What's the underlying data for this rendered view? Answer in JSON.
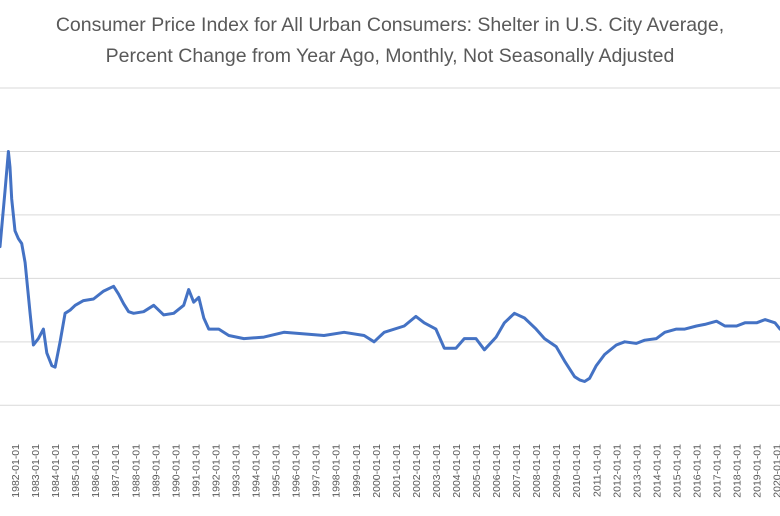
{
  "chart_data": {
    "type": "line",
    "title": "Consumer Price Index for All Urban Consumers: Shelter in U.S. City Average,",
    "subtitle": "Percent Change from Year Ago, Monthly, Not Seasonally Adjusted",
    "xlabel": "",
    "ylabel": "",
    "grid": "horizontal",
    "legend": "none",
    "series_color": "#4472c4",
    "x_tick_labels": [
      "1982-01-01",
      "1983-01-01",
      "1984-01-01",
      "1985-01-01",
      "1986-01-01",
      "1987-01-01",
      "1988-01-01",
      "1989-01-01",
      "1990-01-01",
      "1991-01-01",
      "1992-01-01",
      "1993-01-01",
      "1994-01-01",
      "1995-01-01",
      "1996-01-01",
      "1997-01-01",
      "1998-01-01",
      "1999-01-01",
      "2000-01-01",
      "2001-01-01",
      "2002-01-01",
      "2003-01-01",
      "2004-01-01",
      "2005-01-01",
      "2006-01-01",
      "2007-01-01",
      "2008-01-01",
      "2009-01-01",
      "2010-01-01",
      "2011-01-01",
      "2012-01-01",
      "2013-01-01",
      "2014-01-01",
      "2015-01-01",
      "2016-01-01",
      "2017-01-01",
      "2018-01-01",
      "2019-01-01",
      "2020-01-01"
    ],
    "x_range": [
      "1981-04-01",
      "2020-03-01"
    ],
    "ylim": [
      -4,
      18
    ],
    "gridlines_y": [
      -2,
      2,
      6,
      10,
      14,
      18
    ],
    "series": [
      {
        "points": [
          [
            "1981-04-01",
            8.0
          ],
          [
            "1981-07-01",
            11.5
          ],
          [
            "1981-09-01",
            14.0
          ],
          [
            "1981-10-01",
            13.0
          ],
          [
            "1981-11-01",
            11.0
          ],
          [
            "1982-01-01",
            9.0
          ],
          [
            "1982-03-01",
            8.5
          ],
          [
            "1982-05-01",
            8.2
          ],
          [
            "1982-07-01",
            7.0
          ],
          [
            "1982-10-01",
            3.8
          ],
          [
            "1982-12-01",
            1.8
          ],
          [
            "1983-03-01",
            2.2
          ],
          [
            "1983-06-01",
            2.8
          ],
          [
            "1983-08-01",
            1.3
          ],
          [
            "1983-11-01",
            0.5
          ],
          [
            "1984-01-01",
            0.4
          ],
          [
            "1984-04-01",
            2.0
          ],
          [
            "1984-07-01",
            3.8
          ],
          [
            "1984-10-01",
            4.0
          ],
          [
            "1985-01-01",
            4.3
          ],
          [
            "1985-06-01",
            4.6
          ],
          [
            "1985-12-01",
            4.7
          ],
          [
            "1986-06-01",
            5.2
          ],
          [
            "1986-12-01",
            5.5
          ],
          [
            "1987-03-01",
            5.0
          ],
          [
            "1987-06-01",
            4.4
          ],
          [
            "1987-09-01",
            3.9
          ],
          [
            "1987-12-01",
            3.8
          ],
          [
            "1988-06-01",
            3.9
          ],
          [
            "1988-12-01",
            4.3
          ],
          [
            "1989-06-01",
            3.7
          ],
          [
            "1989-12-01",
            3.8
          ],
          [
            "1990-06-01",
            4.3
          ],
          [
            "1990-09-01",
            5.3
          ],
          [
            "1990-12-01",
            4.5
          ],
          [
            "1991-03-01",
            4.8
          ],
          [
            "1991-06-01",
            3.5
          ],
          [
            "1991-09-01",
            2.8
          ],
          [
            "1992-03-01",
            2.8
          ],
          [
            "1992-09-01",
            2.4
          ],
          [
            "1993-06-01",
            2.2
          ],
          [
            "1994-06-01",
            2.3
          ],
          [
            "1995-06-01",
            2.6
          ],
          [
            "1996-06-01",
            2.5
          ],
          [
            "1997-06-01",
            2.4
          ],
          [
            "1998-06-01",
            2.6
          ],
          [
            "1999-06-01",
            2.4
          ],
          [
            "1999-12-01",
            2.0
          ],
          [
            "2000-06-01",
            2.6
          ],
          [
            "2001-06-01",
            3.0
          ],
          [
            "2002-01-01",
            3.6
          ],
          [
            "2002-06-01",
            3.2
          ],
          [
            "2003-01-01",
            2.8
          ],
          [
            "2003-06-01",
            1.6
          ],
          [
            "2004-01-01",
            1.6
          ],
          [
            "2004-06-01",
            2.2
          ],
          [
            "2005-01-01",
            2.2
          ],
          [
            "2005-06-01",
            1.5
          ],
          [
            "2006-01-01",
            2.3
          ],
          [
            "2006-06-01",
            3.2
          ],
          [
            "2006-12-01",
            3.8
          ],
          [
            "2007-06-01",
            3.5
          ],
          [
            "2008-01-01",
            2.8
          ],
          [
            "2008-06-01",
            2.2
          ],
          [
            "2009-01-01",
            1.7
          ],
          [
            "2009-06-01",
            0.8
          ],
          [
            "2009-12-01",
            -0.2
          ],
          [
            "2010-03-01",
            -0.4
          ],
          [
            "2010-06-01",
            -0.5
          ],
          [
            "2010-09-01",
            -0.3
          ],
          [
            "2011-01-01",
            0.5
          ],
          [
            "2011-06-01",
            1.2
          ],
          [
            "2012-01-01",
            1.8
          ],
          [
            "2012-06-01",
            2.0
          ],
          [
            "2013-01-01",
            1.9
          ],
          [
            "2013-06-01",
            2.1
          ],
          [
            "2014-01-01",
            2.2
          ],
          [
            "2014-06-01",
            2.6
          ],
          [
            "2015-01-01",
            2.8
          ],
          [
            "2015-06-01",
            2.8
          ],
          [
            "2016-01-01",
            3.0
          ],
          [
            "2016-06-01",
            3.1
          ],
          [
            "2017-01-01",
            3.3
          ],
          [
            "2017-06-01",
            3.0
          ],
          [
            "2018-01-01",
            3.0
          ],
          [
            "2018-06-01",
            3.2
          ],
          [
            "2019-01-01",
            3.2
          ],
          [
            "2019-06-01",
            3.4
          ],
          [
            "2019-12-01",
            3.2
          ],
          [
            "2020-03-01",
            2.8
          ]
        ]
      }
    ]
  }
}
